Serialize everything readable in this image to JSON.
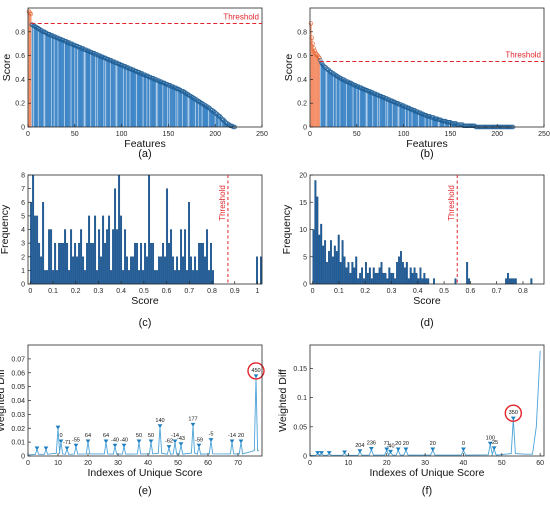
{
  "chart_data": [
    {
      "panel": "a",
      "caption": "(a)",
      "type": "bar",
      "xlabel": "Features",
      "ylabel": "Score",
      "xlim": [
        0,
        250
      ],
      "ylim": [
        0,
        1
      ],
      "xticks": [
        "0",
        "50",
        "100",
        "150",
        "200",
        "250"
      ],
      "yticks": [
        "0",
        "0.2",
        "0.4",
        "0.6",
        "0.8"
      ],
      "threshold": 0.87,
      "threshold_label": "Threshold",
      "n_selected": 3,
      "series": [
        {
          "values": [
            0.97,
            0.96,
            0.95,
            0.86,
            0.86,
            0.85,
            0.85,
            0.84,
            0.84,
            0.83,
            0.83,
            0.82,
            0.82,
            0.81,
            0.81,
            0.8,
            0.8,
            0.8,
            0.79,
            0.79,
            0.78,
            0.78,
            0.78,
            0.77,
            0.77,
            0.77,
            0.76,
            0.76,
            0.76,
            0.75,
            0.75,
            0.75,
            0.74,
            0.74,
            0.74,
            0.73,
            0.73,
            0.73,
            0.72,
            0.72,
            0.72,
            0.71,
            0.71,
            0.71,
            0.7,
            0.7,
            0.7,
            0.69,
            0.69,
            0.69,
            0.68,
            0.68,
            0.68,
            0.67,
            0.67,
            0.67,
            0.66,
            0.66,
            0.66,
            0.65,
            0.65,
            0.65,
            0.64,
            0.64,
            0.64,
            0.63,
            0.63,
            0.63,
            0.62,
            0.62,
            0.62,
            0.61,
            0.61,
            0.61,
            0.6,
            0.6,
            0.6,
            0.59,
            0.59,
            0.59,
            0.58,
            0.58,
            0.58,
            0.57,
            0.57,
            0.57,
            0.56,
            0.56,
            0.56,
            0.55,
            0.55,
            0.55,
            0.54,
            0.54,
            0.54,
            0.53,
            0.53,
            0.53,
            0.52,
            0.52,
            0.52,
            0.51,
            0.51,
            0.51,
            0.5,
            0.5,
            0.5,
            0.49,
            0.49,
            0.49,
            0.48,
            0.48,
            0.48,
            0.47,
            0.47,
            0.47,
            0.46,
            0.46,
            0.46,
            0.45,
            0.45,
            0.45,
            0.44,
            0.44,
            0.44,
            0.43,
            0.43,
            0.43,
            0.42,
            0.42,
            0.42,
            0.41,
            0.41,
            0.41,
            0.4,
            0.4,
            0.4,
            0.39,
            0.39,
            0.39,
            0.38,
            0.38,
            0.38,
            0.37,
            0.37,
            0.37,
            0.36,
            0.36,
            0.36,
            0.35,
            0.35,
            0.35,
            0.34,
            0.34,
            0.34,
            0.33,
            0.33,
            0.33,
            0.32,
            0.32,
            0.32,
            0.31,
            0.31,
            0.3,
            0.3,
            0.3,
            0.29,
            0.29,
            0.28,
            0.28,
            0.27,
            0.27,
            0.26,
            0.26,
            0.25,
            0.25,
            0.24,
            0.24,
            0.23,
            0.23,
            0.22,
            0.22,
            0.21,
            0.21,
            0.2,
            0.2,
            0.19,
            0.19,
            0.18,
            0.18,
            0.17,
            0.17,
            0.16,
            0.16,
            0.15,
            0.14,
            0.14,
            0.13,
            0.13,
            0.12,
            0.11,
            0.11,
            0.1,
            0.09,
            0.09,
            0.08,
            0.07,
            0.06,
            0.06,
            0.05,
            0.04,
            0.03,
            0.03,
            0.02,
            0.02,
            0.01,
            0.01,
            0.01,
            0.0,
            0.0,
            0.0
          ]
        }
      ]
    },
    {
      "panel": "b",
      "caption": "(b)",
      "type": "bar",
      "xlabel": "Features",
      "ylabel": "Score",
      "xlim": [
        0,
        250
      ],
      "ylim": [
        0,
        1
      ],
      "xticks": [
        "0",
        "50",
        "100",
        "150",
        "200",
        "250"
      ],
      "yticks": [
        "0",
        "0.2",
        "0.4",
        "0.6",
        "0.8"
      ],
      "threshold": 0.55,
      "threshold_label": "Threshold",
      "n_selected": 10,
      "series": [
        {
          "values": [
            0.87,
            0.75,
            0.7,
            0.66,
            0.64,
            0.62,
            0.61,
            0.6,
            0.59,
            0.58,
            0.56,
            0.54,
            0.53,
            0.52,
            0.51,
            0.5,
            0.5,
            0.49,
            0.48,
            0.48,
            0.47,
            0.46,
            0.46,
            0.45,
            0.45,
            0.44,
            0.44,
            0.43,
            0.43,
            0.42,
            0.42,
            0.41,
            0.41,
            0.4,
            0.4,
            0.4,
            0.39,
            0.39,
            0.38,
            0.38,
            0.38,
            0.37,
            0.37,
            0.37,
            0.36,
            0.36,
            0.35,
            0.35,
            0.35,
            0.34,
            0.34,
            0.34,
            0.33,
            0.33,
            0.33,
            0.32,
            0.32,
            0.32,
            0.31,
            0.31,
            0.31,
            0.3,
            0.3,
            0.3,
            0.29,
            0.29,
            0.29,
            0.28,
            0.28,
            0.28,
            0.27,
            0.27,
            0.27,
            0.26,
            0.26,
            0.26,
            0.25,
            0.25,
            0.25,
            0.24,
            0.24,
            0.24,
            0.23,
            0.23,
            0.23,
            0.22,
            0.22,
            0.22,
            0.21,
            0.21,
            0.21,
            0.2,
            0.2,
            0.2,
            0.19,
            0.19,
            0.19,
            0.18,
            0.18,
            0.18,
            0.17,
            0.17,
            0.17,
            0.16,
            0.16,
            0.16,
            0.15,
            0.15,
            0.15,
            0.14,
            0.14,
            0.14,
            0.13,
            0.13,
            0.13,
            0.12,
            0.12,
            0.12,
            0.11,
            0.11,
            0.11,
            0.1,
            0.1,
            0.1,
            0.09,
            0.09,
            0.09,
            0.09,
            0.08,
            0.08,
            0.08,
            0.08,
            0.07,
            0.07,
            0.07,
            0.07,
            0.06,
            0.06,
            0.06,
            0.06,
            0.05,
            0.05,
            0.05,
            0.05,
            0.05,
            0.04,
            0.04,
            0.04,
            0.04,
            0.04,
            0.03,
            0.03,
            0.03,
            0.03,
            0.03,
            0.03,
            0.02,
            0.02,
            0.02,
            0.02,
            0.02,
            0.02,
            0.02,
            0.01,
            0.01,
            0.01,
            0.01,
            0.01,
            0.01,
            0.01,
            0.01,
            0.01,
            0.01,
            0.01,
            0.01,
            0.01,
            0.0,
            0.0,
            0.0,
            0.0,
            0.0,
            0.0,
            0.0,
            0.0,
            0.0,
            0.0,
            0.0,
            0.0,
            0.0,
            0.0,
            0.0,
            0.0,
            0.0,
            0.0,
            0.0,
            0.0,
            0.0,
            0.0,
            0.0,
            0.0,
            0.0,
            0.0,
            0.0,
            0.0,
            0.0,
            0.0,
            0.0,
            0.0,
            0.0,
            0.0,
            0.0,
            0.0,
            0.0,
            0.0,
            0.0,
            0.0,
            0.0
          ]
        }
      ]
    },
    {
      "panel": "c",
      "caption": "(c)",
      "type": "bar",
      "xlabel": "Score",
      "ylabel": "Frequency",
      "xlim": [
        -0.01,
        1.02
      ],
      "ylim": [
        0,
        8
      ],
      "xticks": [
        "0",
        "0.1",
        "0.2",
        "0.3",
        "0.4",
        "0.5",
        "0.6",
        "0.7",
        "0.8",
        "0.9",
        "1"
      ],
      "yticks": [
        "0",
        "1",
        "2",
        "3",
        "4",
        "5",
        "6",
        "7",
        "8"
      ],
      "threshold": 0.87,
      "threshold_label": "Threshold",
      "bin_width": 0.0088,
      "series": [
        {
          "values": [
            6,
            8,
            5,
            5,
            3,
            2,
            6,
            1,
            1,
            4,
            4,
            1,
            3,
            1,
            3,
            3,
            3,
            4,
            3,
            1,
            4,
            2,
            3,
            2,
            3,
            4,
            2,
            1,
            3,
            5,
            3,
            3,
            5,
            1,
            4,
            2,
            5,
            3,
            4,
            5,
            1,
            4,
            7,
            4,
            8,
            5,
            1,
            4,
            2,
            1,
            2,
            2,
            3,
            3,
            1,
            3,
            1,
            3,
            2,
            8,
            3,
            3,
            1,
            1,
            2,
            2,
            3,
            2,
            7,
            3,
            4,
            2,
            1,
            2,
            1,
            4,
            2,
            4,
            1,
            6,
            2,
            1,
            2,
            1,
            3,
            3,
            3,
            2,
            4,
            1,
            3,
            1,
            0,
            0,
            0,
            0,
            0,
            0,
            0,
            0,
            0,
            0,
            0,
            0,
            0,
            0,
            0,
            0,
            0,
            0,
            0,
            0,
            0,
            2,
            0,
            2
          ]
        }
      ]
    },
    {
      "panel": "d",
      "caption": "(d)",
      "type": "bar",
      "xlabel": "Score",
      "ylabel": "Frequency",
      "xlim": [
        -0.01,
        0.88
      ],
      "ylim": [
        0,
        20
      ],
      "xticks": [
        "0",
        "0.1",
        "0.2",
        "0.3",
        "0.4",
        "0.5",
        "0.6",
        "0.7",
        "0.8"
      ],
      "yticks": [
        "0",
        "5",
        "10",
        "15",
        "20"
      ],
      "threshold": 0.55,
      "threshold_label": "Threshold",
      "bin_width": 0.0074,
      "series": [
        {
          "values": [
            10,
            19,
            16,
            9,
            11,
            7,
            8,
            4,
            6,
            8,
            5,
            7,
            6,
            9,
            4,
            8,
            5,
            3,
            4,
            2,
            4,
            3,
            5,
            1,
            2,
            3,
            1,
            4,
            2,
            3,
            1,
            3,
            2,
            2,
            3,
            4,
            2,
            2,
            1,
            3,
            2,
            2,
            1,
            4,
            5,
            6,
            4,
            3,
            4,
            1,
            3,
            2,
            3,
            2,
            1,
            3,
            1,
            2,
            1,
            1,
            0,
            0,
            1,
            0,
            0,
            0,
            0,
            0,
            0,
            0,
            0,
            0,
            0,
            1,
            0,
            0,
            0,
            0,
            0,
            4,
            1,
            0,
            0,
            0,
            0,
            0,
            0,
            0,
            0,
            0,
            0,
            0,
            0,
            0,
            0,
            0,
            0,
            0,
            0,
            1,
            2,
            1,
            1,
            1,
            1,
            0,
            0,
            0,
            0,
            0,
            0,
            0,
            1
          ]
        }
      ]
    },
    {
      "panel": "e",
      "caption": "(e)",
      "type": "line",
      "xlabel": "Indexes of Unique Score",
      "ylabel": "Weighted Diff",
      "xlim": [
        0,
        78
      ],
      "ylim": [
        0,
        0.08
      ],
      "xticks": [
        "0",
        "10",
        "20",
        "30",
        "40",
        "50",
        "60",
        "70"
      ],
      "yticks": [
        "0",
        "0.01",
        "0.02",
        "0.03",
        "0.04",
        "0.05",
        "0.06",
        "0.07"
      ],
      "peaks": [
        {
          "x": 3,
          "y": 0.005,
          "label": ""
        },
        {
          "x": 6,
          "y": 0.005,
          "label": ""
        },
        {
          "x": 10,
          "y": 0.02,
          "label": ""
        },
        {
          "x": 11,
          "y": 0.01,
          "label": "0"
        },
        {
          "x": 13,
          "y": 0.005,
          "label": "-71"
        },
        {
          "x": 16,
          "y": 0.007,
          "label": "-55"
        },
        {
          "x": 20,
          "y": 0.01,
          "label": "64"
        },
        {
          "x": 26,
          "y": 0.01,
          "label": "64"
        },
        {
          "x": 29,
          "y": 0.007,
          "label": "-40"
        },
        {
          "x": 32,
          "y": 0.007,
          "label": "-40"
        },
        {
          "x": 37,
          "y": 0.01,
          "label": "50"
        },
        {
          "x": 41,
          "y": 0.01,
          "label": "50"
        },
        {
          "x": 44,
          "y": 0.021,
          "label": "140"
        },
        {
          "x": 47,
          "y": 0.006,
          "label": "-62"
        },
        {
          "x": 49,
          "y": 0.01,
          "label": "-14"
        },
        {
          "x": 51,
          "y": 0.008,
          "label": "-43"
        },
        {
          "x": 55,
          "y": 0.022,
          "label": "177"
        },
        {
          "x": 57,
          "y": 0.007,
          "label": "-59"
        },
        {
          "x": 61,
          "y": 0.011,
          "label": "-5"
        },
        {
          "x": 68,
          "y": 0.01,
          "label": "-14"
        },
        {
          "x": 71,
          "y": 0.01,
          "label": "20"
        },
        {
          "x": 76,
          "y": 0.057,
          "label": "450"
        }
      ],
      "highlight_peak": 76
    },
    {
      "panel": "f",
      "caption": "(f)",
      "type": "line",
      "xlabel": "Indexes of Unique Score",
      "ylabel": "Weighted Diff",
      "xlim": [
        0,
        61
      ],
      "ylim": [
        0,
        0.19
      ],
      "xticks": [
        "0",
        "10",
        "20",
        "30",
        "40",
        "50",
        "60"
      ],
      "yticks": [
        "0",
        "0.05",
        "0.1",
        "0.15"
      ],
      "peaks": [
        {
          "x": 2,
          "y": 0.004,
          "label": ""
        },
        {
          "x": 3,
          "y": 0.004,
          "label": ""
        },
        {
          "x": 5,
          "y": 0.004,
          "label": ""
        },
        {
          "x": 9,
          "y": 0.005,
          "label": ""
        },
        {
          "x": 13,
          "y": 0.007,
          "label": "204"
        },
        {
          "x": 16,
          "y": 0.011,
          "label": "236"
        },
        {
          "x": 20,
          "y": 0.01,
          "label": "71"
        },
        {
          "x": 21,
          "y": 0.006,
          "label": "-40"
        },
        {
          "x": 23,
          "y": 0.01,
          "label": "20"
        },
        {
          "x": 25,
          "y": 0.01,
          "label": "20"
        },
        {
          "x": 32,
          "y": 0.01,
          "label": "20"
        },
        {
          "x": 40,
          "y": 0.01,
          "label": "0"
        },
        {
          "x": 47,
          "y": 0.02,
          "label": "100"
        },
        {
          "x": 48,
          "y": 0.012,
          "label": "-25"
        },
        {
          "x": 53,
          "y": 0.063,
          "label": "350"
        }
      ],
      "highlight_peak": 53
    }
  ]
}
